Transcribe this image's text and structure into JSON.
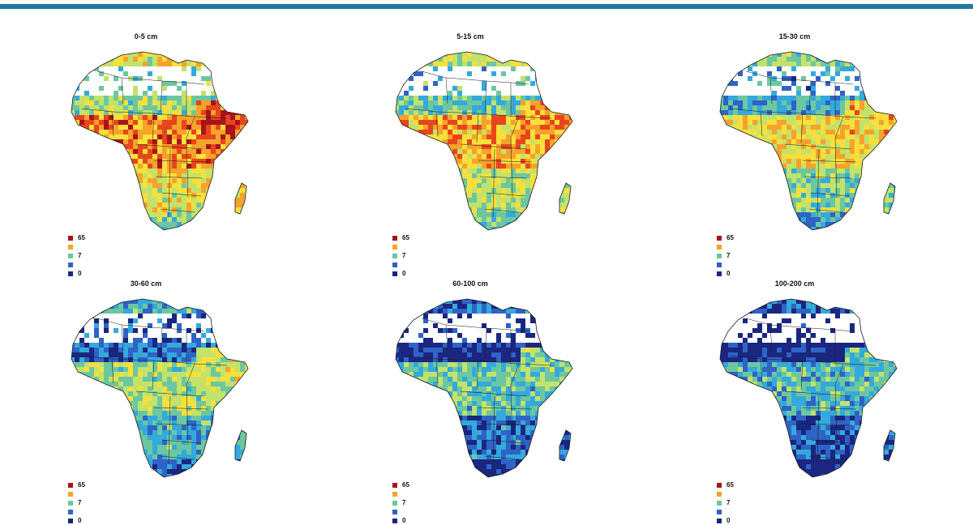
{
  "colors": {
    "rule": "#1f7a9e",
    "border": "#1a1a1a",
    "scale": [
      "#1a2680",
      "#2f63c6",
      "#34a9dc",
      "#6cc7a0",
      "#c2e26a",
      "#f7e03c",
      "#f7a22a",
      "#e8451d",
      "#a8141a"
    ]
  },
  "legend": {
    "items": [
      {
        "label": "65",
        "color": "#a8141a"
      },
      {
        "label": "",
        "color": "#f7a22a"
      },
      {
        "label": "7",
        "color": "#6cc7a0"
      },
      {
        "label": "",
        "color": "#2f63c6"
      },
      {
        "label": "0",
        "color": "#1a2680"
      }
    ]
  },
  "panels": [
    {
      "title": "0-5 cm",
      "level": 0.78
    },
    {
      "title": "5-15 cm",
      "level": 0.68
    },
    {
      "title": "15-30 cm",
      "level": 0.58
    },
    {
      "title": "30-60 cm",
      "level": 0.42
    },
    {
      "title": "60-100 cm",
      "level": 0.28
    },
    {
      "title": "100-200 cm",
      "level": 0.22
    }
  ]
}
